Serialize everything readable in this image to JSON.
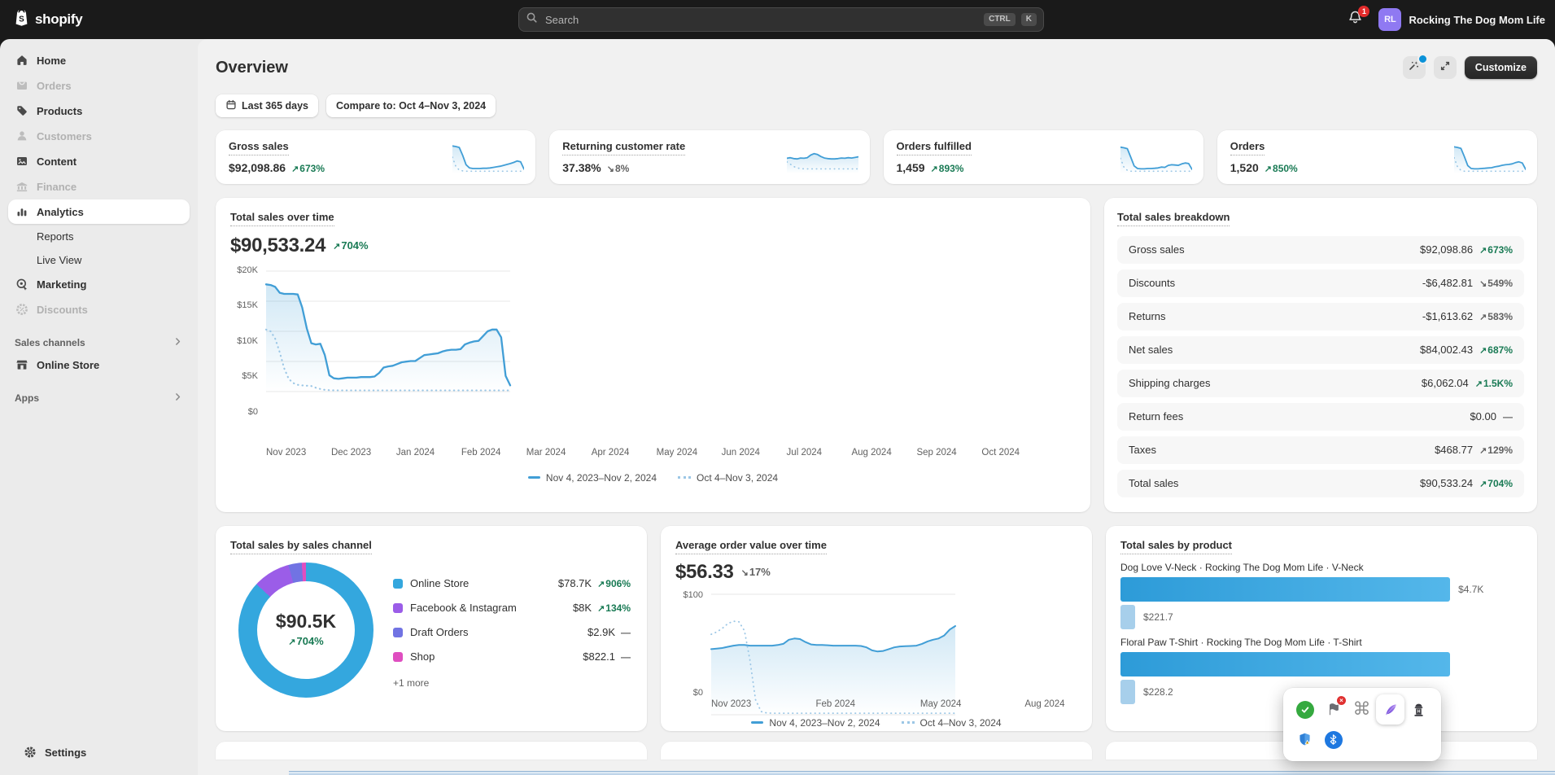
{
  "topbar": {
    "logo_text": "shopify",
    "search": {
      "placeholder": "Search",
      "keys": [
        "CTRL",
        "K"
      ]
    },
    "notification_count": "1",
    "avatar_initials": "RL",
    "store_name": "Rocking The Dog Mom Life"
  },
  "sidebar": {
    "items": [
      {
        "label": "Home",
        "icon": "home",
        "state": "default"
      },
      {
        "label": "Orders",
        "icon": "orders",
        "state": "disabled"
      },
      {
        "label": "Products",
        "icon": "products",
        "state": "default"
      },
      {
        "label": "Customers",
        "icon": "customers",
        "state": "disabled"
      },
      {
        "label": "Content",
        "icon": "content",
        "state": "default"
      },
      {
        "label": "Finance",
        "icon": "finance",
        "state": "disabled"
      },
      {
        "label": "Analytics",
        "icon": "analytics",
        "state": "active"
      },
      {
        "label": "Reports",
        "icon": "",
        "state": "sub"
      },
      {
        "label": "Live View",
        "icon": "",
        "state": "sub"
      },
      {
        "label": "Marketing",
        "icon": "marketing",
        "state": "default"
      },
      {
        "label": "Discounts",
        "icon": "discounts",
        "state": "disabled"
      }
    ],
    "sales_channels_header": "Sales channels",
    "online_store_label": "Online Store",
    "apps_header": "Apps",
    "settings_label": "Settings"
  },
  "page": {
    "title": "Overview"
  },
  "header_actions": {
    "customize": "Customize"
  },
  "filters": {
    "date_range": "Last 365 days",
    "compare": "Compare to: Oct 4–Nov 3, 2024"
  },
  "legend": {
    "current": "Nov 4, 2023–Nov 2, 2024",
    "previous": "Oct 4–Nov 3, 2024"
  },
  "stat_cards": [
    {
      "title": "Gross sales",
      "value": "$92,098.86",
      "dir": "up",
      "pct": "673%",
      "tone": "green",
      "spark": "gross"
    },
    {
      "title": "Returning customer rate",
      "value": "37.38%",
      "dir": "down",
      "pct": "8%",
      "tone": "gray",
      "spark": "returning"
    },
    {
      "title": "Orders fulfilled",
      "value": "1,459",
      "dir": "up",
      "pct": "893%",
      "tone": "green",
      "spark": "fulfilled"
    },
    {
      "title": "Orders",
      "value": "1,520",
      "dir": "up",
      "pct": "850%",
      "tone": "green",
      "spark": "orders"
    }
  ],
  "sales_over_time": {
    "title": "Total sales over time",
    "value": "$90,533.24",
    "dir": "up",
    "pct": "704%",
    "tone": "green"
  },
  "breakdown": {
    "title": "Total sales breakdown",
    "rows": [
      {
        "label": "Gross sales",
        "value": "$92,098.86",
        "dir": "up",
        "pct": "673%",
        "tone": "green"
      },
      {
        "label": "Discounts",
        "value": "-$6,482.81",
        "dir": "down",
        "pct": "549%",
        "tone": "gray"
      },
      {
        "label": "Returns",
        "value": "-$1,613.62",
        "dir": "up",
        "pct": "583%",
        "tone": "gray"
      },
      {
        "label": "Net sales",
        "value": "$84,002.43",
        "dir": "up",
        "pct": "687%",
        "tone": "green"
      },
      {
        "label": "Shipping charges",
        "value": "$6,062.04",
        "dir": "up",
        "pct": "1.5K%",
        "tone": "green"
      },
      {
        "label": "Return fees",
        "value": "$0.00",
        "dir": "none",
        "pct": "—",
        "tone": "gray"
      },
      {
        "label": "Taxes",
        "value": "$468.77",
        "dir": "up",
        "pct": "129%",
        "tone": "gray"
      },
      {
        "label": "Total sales",
        "value": "$90,533.24",
        "dir": "up",
        "pct": "704%",
        "tone": "green"
      }
    ]
  },
  "channels": {
    "title": "Total sales by sales channel",
    "center_value": "$90.5K",
    "center_dir": "up",
    "center_pct": "704%",
    "center_tone": "green",
    "more": "+1 more",
    "rows": [
      {
        "label": "Online Store",
        "value": "$78.7K",
        "dir": "up",
        "pct": "906%",
        "tone": "green",
        "color": "#34a7de"
      },
      {
        "label": "Facebook & Instagram",
        "value": "$8K",
        "dir": "up",
        "pct": "134%",
        "tone": "green",
        "color": "#9b5de8"
      },
      {
        "label": "Draft Orders",
        "value": "$2.9K",
        "dir": "none",
        "pct": "—",
        "tone": "gray",
        "color": "#7173e3"
      },
      {
        "label": "Shop",
        "value": "$822.1",
        "dir": "none",
        "pct": "—",
        "tone": "gray",
        "color": "#df4ec0"
      }
    ]
  },
  "aov": {
    "title": "Average order value over time",
    "value": "$56.33",
    "dir": "down",
    "pct": "17%",
    "tone": "gray"
  },
  "products": {
    "title": "Total sales by product",
    "rows": [
      {
        "label": "Dog Love V-Neck · Rocking The Dog Mom Life · V-Neck",
        "value_label": "$4.7K",
        "width_pct": 82,
        "compare_label": "$221.7"
      },
      {
        "label": "Floral Paw T-Shirt · Rocking The Dog Mom Life · T-Shirt",
        "value_label": "",
        "width_pct": 82,
        "compare_label": "$228.2"
      }
    ]
  },
  "popup": {
    "icons": [
      {
        "name": "approve-check-icon",
        "row": 1
      },
      {
        "name": "flag-off-icon",
        "row": 1
      },
      {
        "name": "command-icon",
        "row": 1
      },
      {
        "name": "feather-icon",
        "row": 1,
        "selected": true
      },
      {
        "name": "hydrant-icon",
        "row": 1
      },
      {
        "name": "shield-warning-icon",
        "row": 2
      },
      {
        "name": "bluetooth-icon",
        "row": 2
      }
    ]
  },
  "chart_data": [
    {
      "id": "total_sales",
      "type": "line",
      "title": "Total sales over time",
      "ylim": [
        0,
        20
      ],
      "unit": "thousand USD",
      "y_ticks": [
        "$20K",
        "$15K",
        "$10K",
        "$5K",
        "$0"
      ],
      "x_ticks": [
        "Nov 2023",
        "Dec 2023",
        "Jan 2024",
        "Feb 2024",
        "Mar 2024",
        "Apr 2024",
        "May 2024",
        "Jun 2024",
        "Jul 2024",
        "Aug 2024",
        "Sep 2024",
        "Oct 2024"
      ],
      "legend_position": "bottom",
      "series": [
        {
          "name": "Nov 4, 2023–Nov 2, 2024",
          "style": "solid",
          "values": [
            17.9,
            17.8,
            17.5,
            16.5,
            16.3,
            16.3,
            16.3,
            16.2,
            14.0,
            10.5,
            8.0,
            7.8,
            7.9,
            6.0,
            2.6,
            2.1,
            2.0,
            2.1,
            2.2,
            2.2,
            2.2,
            2.3,
            2.3,
            2.3,
            2.4,
            3.0,
            3.9,
            4.1,
            4.2,
            4.5,
            4.8,
            4.9,
            5.0,
            5.0,
            5.5,
            6.0,
            6.1,
            6.2,
            6.3,
            6.6,
            6.8,
            6.9,
            6.9,
            7.0,
            7.8,
            8.1,
            8.3,
            8.4,
            9.2,
            10.0,
            10.3,
            10.3,
            9.0,
            2.5,
            0.9
          ]
        },
        {
          "name": "Oct 4–Nov 3, 2024",
          "style": "dotted",
          "values": [
            10.3,
            10.0,
            8.8,
            6.5,
            3.8,
            2.0,
            1.3,
            1.0,
            0.9,
            0.85,
            0.8,
            0.5,
            0.3,
            0.15,
            0.1,
            0.07,
            0.07,
            0.07,
            0.07,
            0.07,
            0.07,
            0.07,
            0.07,
            0.07,
            0.07,
            0.07,
            0.07,
            0.07,
            0.07,
            0.07,
            0.07,
            0.07,
            0.07,
            0.07,
            0.07,
            0.07,
            0.07,
            0.07,
            0.07,
            0.07,
            0.07,
            0.07,
            0.07,
            0.07,
            0.07,
            0.07,
            0.07,
            0.07,
            0.07,
            0.07,
            0.07,
            0.07,
            0.07,
            0.07,
            0.07
          ]
        }
      ]
    },
    {
      "id": "aov",
      "type": "line",
      "title": "Average order value over time",
      "ylim": [
        0,
        100
      ],
      "unit": "USD",
      "y_ticks": [
        "$100",
        "$0"
      ],
      "x_ticks": [
        "Nov 2023",
        "Feb 2024",
        "May 2024",
        "Aug 2024"
      ],
      "legend_position": "bottom",
      "series": [
        {
          "name": "Nov 4, 2023–Nov 2, 2024",
          "style": "solid",
          "values": [
            54.5,
            55,
            55.5,
            56.5,
            57.5,
            58,
            58,
            57.5,
            57.5,
            57.5,
            57.5,
            57.5,
            58,
            59,
            62.5,
            63.5,
            63,
            60.5,
            58.5,
            58,
            58,
            57.8,
            57.5,
            57.5,
            57.5,
            57.5,
            57.5,
            57.2,
            56,
            53.5,
            52.5,
            53,
            54.5,
            56,
            56.8,
            57,
            57.2,
            57.5,
            59,
            61,
            62.5,
            63.5,
            66,
            71,
            74
          ]
        },
        {
          "name": "Oct 4–Nov 3, 2024",
          "style": "dotted",
          "values": [
            67,
            69,
            72,
            76,
            78,
            77.5,
            70,
            45,
            12,
            2,
            0.8,
            0.6,
            0.6,
            0.6,
            0.6,
            0.6,
            0.6,
            0.6,
            0.6,
            0.6,
            0.6,
            0.6,
            0.6,
            0.6,
            0.6,
            0.6,
            0.6,
            0.6,
            0.6,
            0.6,
            0.6,
            0.6,
            0.6,
            0.6,
            0.6,
            0.6,
            0.6,
            0.6,
            0.6,
            0.6,
            0.6,
            0.6,
            0.6,
            0.6,
            0.6
          ]
        }
      ]
    },
    {
      "id": "channels_donut",
      "type": "pie",
      "title": "Total sales by sales channel",
      "center": "$90.5K",
      "slices": [
        {
          "label": "Online Store",
          "value_label": "$78.7K",
          "pct": 86.9,
          "color": "#34a7de"
        },
        {
          "label": "Facebook & Instagram",
          "value_label": "$8K",
          "pct": 8.9,
          "color": "#9b5de8"
        },
        {
          "label": "Draft Orders",
          "value_label": "$2.9K",
          "pct": 3.2,
          "color": "#7173e3"
        },
        {
          "label": "Shop",
          "value_label": "$822.1",
          "pct": 1.0,
          "color": "#df4ec0"
        }
      ]
    },
    {
      "id": "products_bar",
      "type": "bar",
      "title": "Total sales by product",
      "bars": [
        {
          "label": "Dog Love V-Neck · Rocking The Dog Mom Life · V-Neck",
          "value_label": "$4.7K",
          "value_pct": 82,
          "compare_label": "$221.7"
        },
        {
          "label": "Floral Paw T-Shirt · Rocking The Dog Mom Life · T-Shirt",
          "value_label": "",
          "value_pct": 82,
          "compare_label": "$228.2"
        }
      ]
    },
    {
      "id": "sparklines",
      "type": "line",
      "ylim": [
        0,
        100
      ],
      "series_by_card": {
        "gross": {
          "solid": [
            88,
            86,
            83,
            56,
            24,
            13,
            11,
            11,
            11,
            12,
            12,
            13,
            15,
            17,
            19,
            22,
            25,
            28,
            32,
            37,
            34,
            9
          ],
          "dotted": [
            50,
            18,
            6,
            3,
            2,
            2,
            2,
            2,
            2,
            2,
            2,
            2,
            2,
            2,
            2,
            2,
            2,
            2,
            2,
            2,
            2,
            2
          ]
        },
        "returning": {
          "solid": [
            46,
            48,
            45,
            44,
            47,
            46,
            48,
            57,
            62,
            59,
            52,
            47,
            45,
            44,
            44,
            45,
            47,
            46,
            48,
            47,
            49,
            51
          ],
          "dotted": [
            34,
            26,
            18,
            13,
            11,
            10,
            10,
            10,
            10,
            10,
            10,
            10,
            10,
            10,
            10,
            10,
            10,
            10,
            10,
            10,
            10,
            10
          ]
        },
        "fulfilled": {
          "solid": [
            84,
            82,
            79,
            50,
            20,
            11,
            10,
            10,
            11,
            11,
            12,
            13,
            16,
            15,
            22,
            24,
            23,
            22,
            27,
            30,
            28,
            8
          ],
          "dotted": [
            46,
            16,
            5,
            2,
            2,
            2,
            2,
            2,
            2,
            2,
            2,
            2,
            2,
            2,
            2,
            2,
            2,
            2,
            2,
            2,
            2,
            2
          ]
        },
        "orders": {
          "solid": [
            85,
            83,
            80,
            52,
            21,
            11,
            10,
            10,
            11,
            12,
            13,
            14,
            17,
            19,
            22,
            24,
            25,
            27,
            31,
            34,
            30,
            8
          ],
          "dotted": [
            48,
            17,
            5,
            2,
            2,
            2,
            2,
            2,
            2,
            2,
            2,
            2,
            2,
            2,
            2,
            2,
            2,
            2,
            2,
            2,
            2,
            2
          ]
        }
      }
    }
  ]
}
